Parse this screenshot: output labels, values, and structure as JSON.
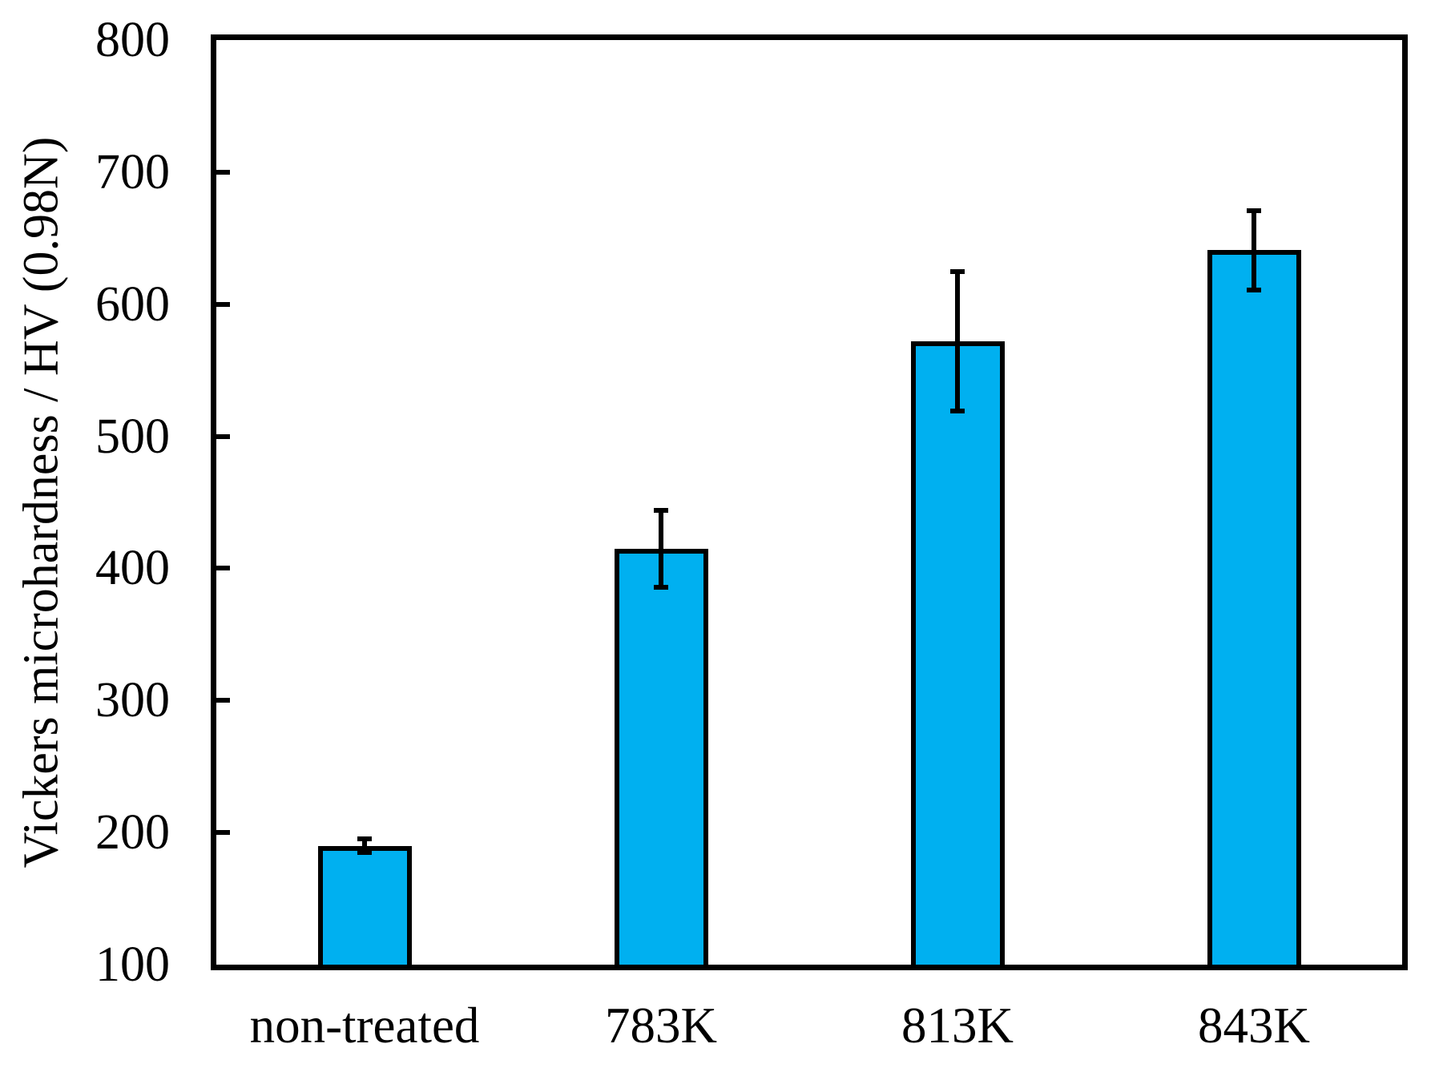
{
  "chart_data": {
    "type": "bar",
    "title": "",
    "categories": [
      "non-treated",
      "783K",
      "813K",
      "843K"
    ],
    "values": [
      190,
      415,
      572,
      641
    ],
    "error_plus": [
      5,
      29,
      53,
      30
    ],
    "error_minus": [
      5,
      29,
      53,
      30
    ],
    "ylabel": "Vickers microhardness / HV (0.98N)",
    "xlabel": "",
    "ylim": [
      100,
      800
    ],
    "yticks": [
      100,
      200,
      300,
      400,
      500,
      600,
      700,
      800
    ],
    "grid": false,
    "legend": false,
    "tick_direction": "in",
    "bar_color": "#00B0F0",
    "bar_border_color": "#000000",
    "axis_color": "#000000",
    "background_color": "#FFFFFF"
  }
}
